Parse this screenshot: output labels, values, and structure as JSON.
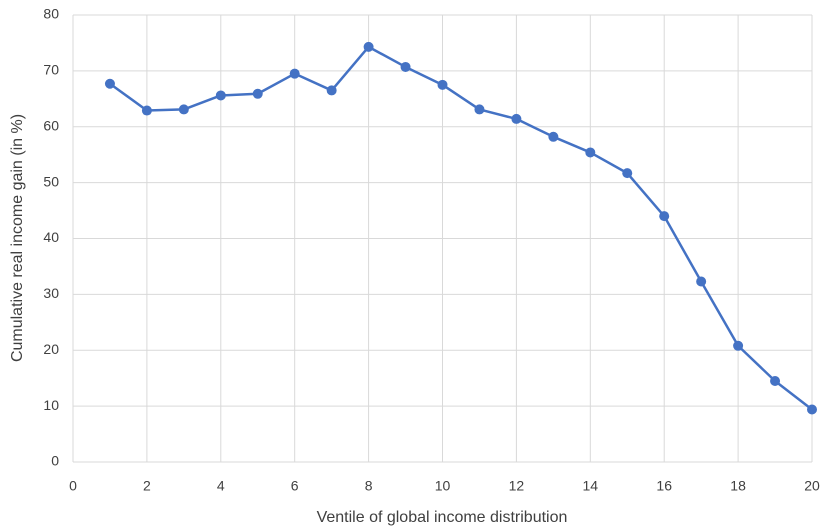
{
  "chart_data": {
    "type": "line",
    "x_label": "Ventile of global income distribution",
    "y_label": "Cumulative real income gain (in %)",
    "series": [
      {
        "name": "Cumulative real income gain",
        "color": "#4472c4",
        "x": [
          1,
          2,
          3,
          4,
          5,
          6,
          7,
          8,
          9,
          10,
          11,
          12,
          13,
          14,
          15,
          16,
          17,
          18,
          19,
          20
        ],
        "values": [
          67.7,
          62.9,
          63.1,
          65.6,
          65.9,
          69.5,
          66.5,
          74.3,
          70.7,
          67.5,
          63.1,
          61.4,
          58.2,
          55.4,
          51.7,
          44.0,
          32.3,
          20.8,
          14.5,
          9.4
        ]
      }
    ],
    "xlim": [
      0,
      20
    ],
    "xticks": [
      0,
      2,
      4,
      6,
      8,
      10,
      12,
      14,
      16,
      18,
      20
    ],
    "ylim": [
      0,
      80
    ],
    "yticks": [
      0,
      10,
      20,
      30,
      40,
      50,
      60,
      70,
      80
    ],
    "grid": true
  }
}
